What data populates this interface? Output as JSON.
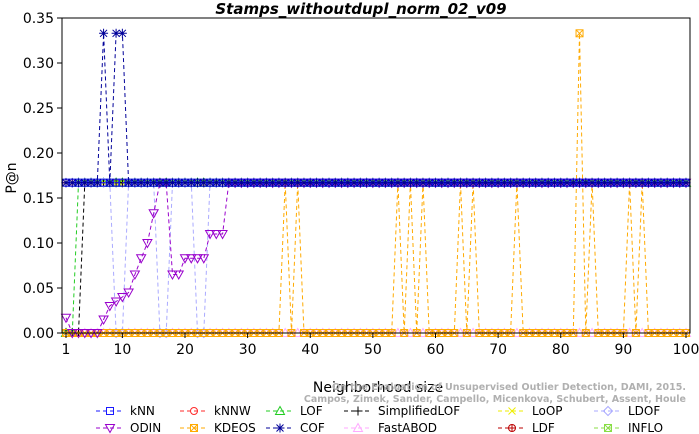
{
  "chart_data": {
    "type": "line",
    "title": "Stamps_withoutdupl_norm_02_v09",
    "xlabel": "Neighborhood size",
    "ylabel": "P@n",
    "xlim": [
      1,
      100
    ],
    "ylim": [
      0,
      0.35
    ],
    "x_ticks": [
      1,
      10,
      20,
      30,
      40,
      50,
      60,
      70,
      80,
      90,
      100
    ],
    "y_ticks": [
      "0.00",
      "0.05",
      "0.10",
      "0.15",
      "0.20",
      "0.25",
      "0.30",
      "0.35"
    ],
    "watermark": "Campos, Zimek, Sander, Campello, Micenkova, Schubert, Assent, Houle\nOn the Evaluation of Unsupervised Outlier Detection, DAMI, 2015.",
    "legend_position": "bottom",
    "series": [
      {
        "name": "kNN",
        "color": "#1a1aff",
        "marker": "square",
        "points": [
          [
            1,
            0.167
          ],
          [
            2,
            0.167
          ],
          [
            5,
            0.167
          ],
          [
            10,
            0.167
          ],
          [
            20,
            0.167
          ],
          [
            40,
            0.167
          ],
          [
            60,
            0.167
          ],
          [
            80,
            0.167
          ],
          [
            100,
            0.167
          ]
        ]
      },
      {
        "name": "kNNW",
        "color": "#ff2a2a",
        "marker": "circle",
        "points": [
          [
            1,
            0.167
          ],
          [
            2,
            0.167
          ],
          [
            3,
            0.167
          ],
          [
            100,
            0.167
          ]
        ]
      },
      {
        "name": "LOF",
        "color": "#22cc22",
        "marker": "triangle",
        "points": [
          [
            1,
            0.0
          ],
          [
            2,
            0.0
          ],
          [
            3,
            0.167
          ],
          [
            100,
            0.167
          ]
        ]
      },
      {
        "name": "SimplifiedLOF",
        "color": "#000000",
        "marker": "plus",
        "points": [
          [
            1,
            0.0
          ],
          [
            3,
            0.0
          ],
          [
            4,
            0.167
          ],
          [
            100,
            0.167
          ]
        ]
      },
      {
        "name": "LoOP",
        "color": "#eeee00",
        "marker": "x",
        "points": [
          [
            1,
            0.167
          ],
          [
            2,
            0.167
          ],
          [
            3,
            0.167
          ],
          [
            100,
            0.167
          ]
        ]
      },
      {
        "name": "LDOF",
        "color": "#aaaaff",
        "marker": "diamond",
        "points": [
          [
            1,
            0.167
          ],
          [
            8,
            0.167
          ],
          [
            9,
            0.0
          ],
          [
            10,
            0.0
          ],
          [
            11,
            0.167
          ],
          [
            15,
            0.167
          ],
          [
            16,
            0.0
          ],
          [
            17,
            0.0
          ],
          [
            18,
            0.167
          ],
          [
            21,
            0.167
          ],
          [
            22,
            0.0
          ],
          [
            23,
            0.0
          ],
          [
            24,
            0.167
          ],
          [
            100,
            0.167
          ]
        ]
      },
      {
        "name": "ODIN",
        "color": "#9900cc",
        "marker": "triangle-down",
        "points": [
          [
            1,
            0.017
          ],
          [
            2,
            0.0
          ],
          [
            3,
            0.0
          ],
          [
            4,
            0.0
          ],
          [
            5,
            0.0
          ],
          [
            6,
            0.0
          ],
          [
            7,
            0.015
          ],
          [
            8,
            0.03
          ],
          [
            9,
            0.035
          ],
          [
            10,
            0.04
          ],
          [
            11,
            0.045
          ],
          [
            12,
            0.065
          ],
          [
            13,
            0.083
          ],
          [
            14,
            0.1
          ],
          [
            15,
            0.133
          ],
          [
            16,
            0.167
          ],
          [
            17,
            0.167
          ],
          [
            18,
            0.065
          ],
          [
            19,
            0.065
          ],
          [
            20,
            0.083
          ],
          [
            21,
            0.083
          ],
          [
            22,
            0.083
          ],
          [
            23,
            0.083
          ],
          [
            24,
            0.11
          ],
          [
            25,
            0.11
          ],
          [
            26,
            0.11
          ],
          [
            27,
            0.167
          ],
          [
            100,
            0.167
          ]
        ]
      },
      {
        "name": "KDEOS",
        "color": "#ffaa00",
        "marker": "square-x",
        "points": [
          [
            1,
            0.0
          ],
          [
            35,
            0.0
          ],
          [
            36,
            0.167
          ],
          [
            37,
            0.0
          ],
          [
            38,
            0.167
          ],
          [
            39,
            0.0
          ],
          [
            53,
            0.0
          ],
          [
            54,
            0.167
          ],
          [
            55,
            0.0
          ],
          [
            56,
            0.167
          ],
          [
            57,
            0.0
          ],
          [
            58,
            0.167
          ],
          [
            59,
            0.0
          ],
          [
            63,
            0.0
          ],
          [
            64,
            0.167
          ],
          [
            65,
            0.0
          ],
          [
            66,
            0.167
          ],
          [
            67,
            0.0
          ],
          [
            72,
            0.0
          ],
          [
            73,
            0.167
          ],
          [
            74,
            0.0
          ],
          [
            82,
            0.0
          ],
          [
            83,
            0.333
          ],
          [
            84,
            0.0
          ],
          [
            85,
            0.167
          ],
          [
            86,
            0.0
          ],
          [
            90,
            0.0
          ],
          [
            91,
            0.167
          ],
          [
            92,
            0.0
          ],
          [
            93,
            0.167
          ],
          [
            94,
            0.0
          ],
          [
            100,
            0.0
          ]
        ]
      },
      {
        "name": "COF",
        "color": "#000099",
        "marker": "star",
        "points": [
          [
            1,
            0.167
          ],
          [
            6,
            0.167
          ],
          [
            7,
            0.333
          ],
          [
            8,
            0.167
          ],
          [
            9,
            0.333
          ],
          [
            10,
            0.333
          ],
          [
            11,
            0.167
          ],
          [
            100,
            0.167
          ]
        ]
      },
      {
        "name": "FastABOD",
        "color": "#ffaaff",
        "marker": "triangle",
        "points": [
          [
            1,
            0.0
          ],
          [
            100,
            0.0
          ]
        ]
      },
      {
        "name": "LDF",
        "color": "#bb0000",
        "marker": "circle-plus",
        "points": [
          [
            1,
            0.167
          ],
          [
            100,
            0.167
          ]
        ]
      },
      {
        "name": "INFLO",
        "color": "#88dd44",
        "marker": "square-x",
        "points": [
          [
            1,
            0.167
          ],
          [
            100,
            0.167
          ]
        ]
      }
    ]
  }
}
